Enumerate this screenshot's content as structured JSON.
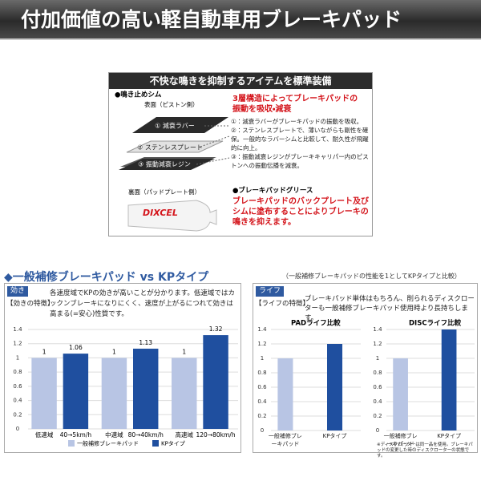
{
  "header": {
    "title": "付加価値の高い軽自動車用ブレーキパッド"
  },
  "feature_box": {
    "title": "不快な鳴きを抑制するアイテムを標準装備",
    "shim": {
      "heading": "●鳴き止めシム",
      "front_side": "表面（ピストン側）",
      "layers": [
        "① 減衰ラバー",
        "② ステンレスプレート",
        "③ 振動減衰レジン"
      ],
      "back_side": "裏面（パッドプレート側）",
      "lead": "3層構造によってブレーキパッドの振動を吸収・減衰",
      "notes": [
        "①：減衰ラバーがブレーキパッドの振動を吸収。",
        "②：ステンレスプレートで、薄いながらも剛性を確保。一般的なラバーシムと比較して、耐久性が飛躍的に向上。",
        "③：振動減衰レジンがブレーキキャリパー内のピストンへの振動伝播を減衰。"
      ]
    },
    "grease": {
      "heading": "●ブレーキパッドグリース",
      "brand": "DIXCEL",
      "text": "ブレーキパッドのバックプレート及びシムに塗布することによりブレーキの鳴きを抑えます。"
    }
  },
  "comparison": {
    "title": "◆一般補修ブレーキパッド vs KPタイプ",
    "note": "（一般補修ブレーキパッドの性能を1としてKPタイプと比較）",
    "braking": {
      "tag": "効き",
      "heading": "【効きの特徴】",
      "text": "各速度域でKPの効きが高いことが分かります。低速域ではカックンブレーキになりにくく、速度が上がるにつれて効きは高まる(=安心)性質です。"
    },
    "life": {
      "tag": "ライフ",
      "heading": "【ライフの特徴】",
      "text": "ブレーキパッド単体はもちろん、削られるディスクローターも一般補修ブレーキパッド使用時より長持ちします。",
      "footnote": "※ディスクローターは同一品を使用。ブレーキパッドの変更した時のディスクローターの状態です。"
    }
  },
  "chart_data": [
    {
      "type": "bar",
      "categories": [
        "低速域",
        "中速域",
        "高速域"
      ],
      "category_ranges": [
        "40→5km/h",
        "80→40km/h",
        "120→80km/h"
      ],
      "series": [
        {
          "name": "一般補修ブレーキパッド",
          "color": "#b8c5e4",
          "values": [
            1,
            1,
            1
          ]
        },
        {
          "name": "KPタイプ",
          "color": "#1f4f9f",
          "values": [
            1.06,
            1.13,
            1.32
          ]
        }
      ],
      "ylim": [
        0,
        1.4
      ],
      "yticks": [
        0,
        0.2,
        0.4,
        0.6,
        0.8,
        1,
        1.2,
        1.4
      ],
      "grid": true,
      "legend": "bottom",
      "value_labels_shown": true
    },
    {
      "type": "bar",
      "title": "PADライフ比較",
      "categories": [
        "一般補修ブレーキパッド",
        "KPタイプ"
      ],
      "values": [
        1,
        1.2
      ],
      "colors": [
        "#b8c5e4",
        "#1f4f9f"
      ],
      "ylim": [
        0,
        1.4
      ],
      "yticks": [
        0,
        0.2,
        0.4,
        0.6,
        0.8,
        1,
        1.2,
        1.4
      ],
      "grid": true
    },
    {
      "type": "bar",
      "title": "DISCライフ比較",
      "categories": [
        "一般補修ブレーキパッド",
        "KPタイプ"
      ],
      "values": [
        1,
        1.4
      ],
      "colors": [
        "#b8c5e4",
        "#1f4f9f"
      ],
      "ylim": [
        0,
        1.4
      ],
      "yticks": [
        0,
        0.2,
        0.4,
        0.6,
        0.8,
        1,
        1.2,
        1.4
      ],
      "grid": true
    }
  ]
}
